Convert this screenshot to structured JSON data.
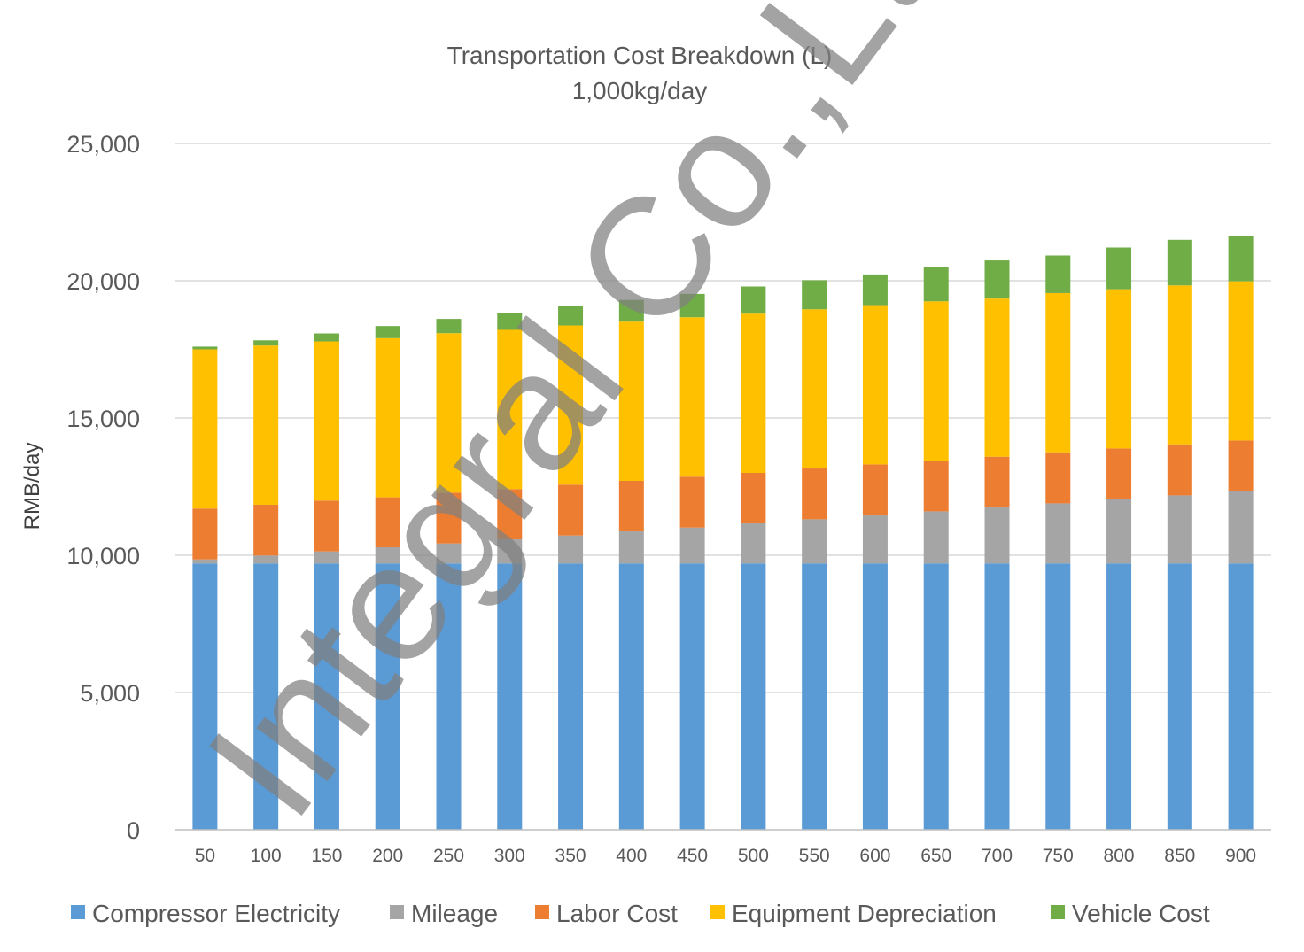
{
  "chart_data": {
    "type": "bar",
    "stacked": true,
    "title": "Transportation Cost Breakdown (L)",
    "subtitle": "1,000kg/day",
    "xlabel": "",
    "ylabel": "RMB/day",
    "ylim": [
      0,
      25000
    ],
    "yticks": [
      0,
      5000,
      10000,
      15000,
      20000,
      25000
    ],
    "ytick_labels": [
      "0",
      "5,000",
      "10,000",
      "15,000",
      "20,000",
      "25,000"
    ],
    "grid": true,
    "legend_position": "bottom",
    "categories": [
      "50",
      "100",
      "150",
      "200",
      "250",
      "300",
      "350",
      "400",
      "450",
      "500",
      "550",
      "600",
      "650",
      "700",
      "750",
      "800",
      "850",
      "900"
    ],
    "series": [
      {
        "name": "Compressor Electricity",
        "color": "#5b9bd5",
        "values": [
          9700,
          9700,
          9700,
          9700,
          9700,
          9700,
          9700,
          9700,
          9700,
          9700,
          9700,
          9700,
          9700,
          9700,
          9700,
          9700,
          9700,
          9700
        ]
      },
      {
        "name": "Mileage",
        "color": "#a5a5a5",
        "values": [
          150,
          290,
          440,
          590,
          730,
          880,
          1020,
          1170,
          1310,
          1460,
          1610,
          1750,
          1900,
          2040,
          2190,
          2340,
          2480,
          2630
        ]
      },
      {
        "name": "Labor Cost",
        "color": "#ed7d31",
        "values": [
          1850,
          1850,
          1850,
          1820,
          1850,
          1830,
          1850,
          1840,
          1850,
          1840,
          1850,
          1860,
          1850,
          1850,
          1860,
          1850,
          1860,
          1850
        ]
      },
      {
        "name": "Equipment Depreciation",
        "color": "#ffc000",
        "values": [
          5800,
          5800,
          5800,
          5800,
          5810,
          5800,
          5800,
          5800,
          5810,
          5800,
          5800,
          5800,
          5800,
          5760,
          5800,
          5800,
          5790,
          5800
        ]
      },
      {
        "name": "Vehicle Cost",
        "color": "#70ad47",
        "values": [
          100,
          190,
          290,
          440,
          520,
          600,
          700,
          790,
          850,
          990,
          1060,
          1120,
          1250,
          1390,
          1370,
          1520,
          1660,
          1650
        ]
      }
    ]
  },
  "watermark": {
    "text": "Integral Co.,Ltd.",
    "color": "#7f7f7f"
  },
  "colors": {
    "grid": "#d9d9d9",
    "axis": "#bfbfbf",
    "text": "#595959"
  }
}
